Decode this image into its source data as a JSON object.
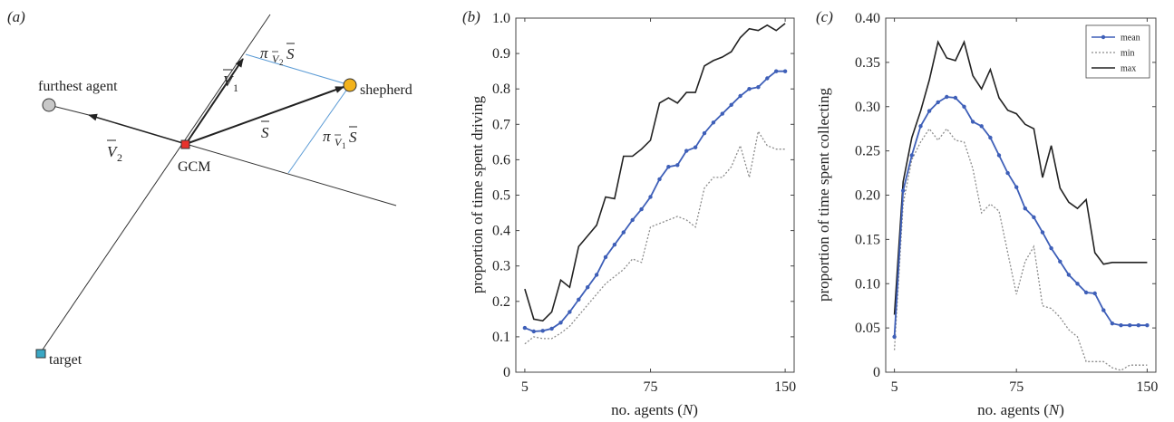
{
  "panel_a": {
    "panel_label": "(a)",
    "labels": {
      "furthest_agent": "furthest agent",
      "shepherd": "shepherd",
      "gcm": "GCM",
      "target": "target",
      "v1": "V",
      "v1_sub": "1",
      "v2": "V",
      "v2_sub": "2",
      "s": "S",
      "proj_v2_pi": "π",
      "proj_v2_sub_v": "V",
      "proj_v2_sub_n": "2",
      "proj_v2_s": "S",
      "proj_v1_pi": "π",
      "proj_v1_sub_v": "V",
      "proj_v1_sub_n": "1",
      "proj_v1_s": "S"
    },
    "colors": {
      "gcm": "#e8322b",
      "shepherd": "#f2b21b",
      "agent": "#c8c8c8",
      "target": "#3aa7c4",
      "projection": "#5b9bd5"
    }
  },
  "chart_data": [
    {
      "type": "line",
      "panel_label": "(b)",
      "xlabel_prefix": "no. agents (",
      "xlabel_var": "N",
      "xlabel_suffix": ")",
      "ylabel": "proportion of time spent driving",
      "xlim": [
        0,
        155
      ],
      "ylim": [
        0,
        1.0
      ],
      "xticks": [
        5,
        75,
        150
      ],
      "yticks": [
        "0",
        "0.1",
        "0.2",
        "0.3",
        "0.4",
        "0.5",
        "0.6",
        "0.7",
        "0.8",
        "0.9",
        "1.0"
      ],
      "x": [
        5,
        10,
        15,
        20,
        25,
        30,
        35,
        40,
        45,
        50,
        55,
        60,
        65,
        70,
        75,
        80,
        85,
        90,
        95,
        100,
        105,
        110,
        115,
        120,
        125,
        130,
        135,
        140,
        145,
        150
      ],
      "series": [
        {
          "name": "mean",
          "color": "#3e5fb8",
          "style": "solid-markers",
          "values": [
            0.125,
            0.115,
            0.117,
            0.123,
            0.14,
            0.17,
            0.205,
            0.24,
            0.275,
            0.325,
            0.36,
            0.395,
            0.43,
            0.46,
            0.495,
            0.545,
            0.58,
            0.585,
            0.625,
            0.635,
            0.675,
            0.705,
            0.73,
            0.755,
            0.78,
            0.8,
            0.805,
            0.83,
            0.85,
            0.85
          ]
        },
        {
          "name": "min",
          "color": "#8c8c8c",
          "style": "dotted",
          "values": [
            0.08,
            0.1,
            0.095,
            0.095,
            0.11,
            0.13,
            0.16,
            0.19,
            0.22,
            0.25,
            0.27,
            0.29,
            0.32,
            0.31,
            0.41,
            0.42,
            0.43,
            0.44,
            0.43,
            0.41,
            0.52,
            0.55,
            0.55,
            0.58,
            0.64,
            0.55,
            0.68,
            0.64,
            0.63,
            0.63
          ]
        },
        {
          "name": "max",
          "color": "#222222",
          "style": "solid",
          "values": [
            0.235,
            0.15,
            0.145,
            0.17,
            0.26,
            0.24,
            0.355,
            0.385,
            0.415,
            0.495,
            0.49,
            0.61,
            0.61,
            0.63,
            0.655,
            0.76,
            0.775,
            0.76,
            0.79,
            0.79,
            0.865,
            0.88,
            0.89,
            0.905,
            0.945,
            0.97,
            0.965,
            0.98,
            0.965,
            0.985
          ]
        }
      ]
    },
    {
      "type": "line",
      "panel_label": "(c)",
      "xlabel_prefix": "no. agents (",
      "xlabel_var": "N",
      "xlabel_suffix": ")",
      "ylabel": "proportion of time spent collecting",
      "xlim": [
        0,
        155
      ],
      "ylim": [
        0,
        0.4
      ],
      "xticks": [
        5,
        75,
        150
      ],
      "yticks": [
        "0",
        "0.05",
        "0.10",
        "0.15",
        "0.20",
        "0.25",
        "0.30",
        "0.35",
        "0.40"
      ],
      "legend": {
        "position": "top-right",
        "entries": [
          "mean",
          "min",
          "max"
        ]
      },
      "x": [
        5,
        10,
        15,
        20,
        25,
        30,
        35,
        40,
        45,
        50,
        55,
        60,
        65,
        70,
        75,
        80,
        85,
        90,
        95,
        100,
        105,
        110,
        115,
        120,
        125,
        130,
        135,
        140,
        145,
        150
      ],
      "series": [
        {
          "name": "mean",
          "color": "#3e5fb8",
          "style": "solid-markers",
          "values": [
            0.04,
            0.205,
            0.245,
            0.278,
            0.295,
            0.305,
            0.311,
            0.31,
            0.3,
            0.283,
            0.278,
            0.265,
            0.245,
            0.225,
            0.209,
            0.185,
            0.175,
            0.158,
            0.14,
            0.125,
            0.11,
            0.1,
            0.09,
            0.089,
            0.07,
            0.055,
            0.053,
            0.053,
            0.053,
            0.053
          ]
        },
        {
          "name": "min",
          "color": "#8c8c8c",
          "style": "dotted",
          "values": [
            0.025,
            0.19,
            0.24,
            0.26,
            0.275,
            0.262,
            0.275,
            0.262,
            0.26,
            0.23,
            0.18,
            0.19,
            0.182,
            0.135,
            0.088,
            0.125,
            0.142,
            0.075,
            0.072,
            0.062,
            0.048,
            0.04,
            0.012,
            0.012,
            0.012,
            0.005,
            0.002,
            0.008,
            0.008,
            0.008
          ]
        },
        {
          "name": "max",
          "color": "#222222",
          "style": "solid",
          "values": [
            0.065,
            0.215,
            0.265,
            0.295,
            0.33,
            0.373,
            0.355,
            0.352,
            0.373,
            0.335,
            0.32,
            0.342,
            0.31,
            0.296,
            0.292,
            0.28,
            0.275,
            0.22,
            0.256,
            0.208,
            0.192,
            0.185,
            0.195,
            0.135,
            0.122,
            0.124,
            0.124,
            0.124,
            0.124,
            0.124
          ]
        }
      ]
    }
  ]
}
